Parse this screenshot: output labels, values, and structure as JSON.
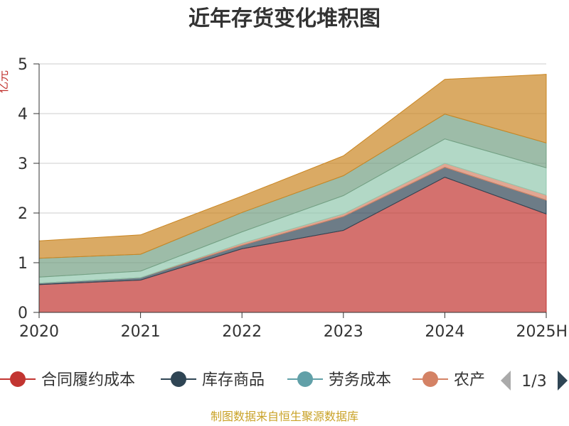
{
  "chart_data": {
    "type": "area",
    "stacked": true,
    "title": "近年存货变化堆积图",
    "ylabel": "亿元",
    "categories": [
      "2020",
      "2021",
      "2022",
      "2023",
      "2024",
      "2025H"
    ],
    "ylim": [
      0,
      5
    ],
    "yticks": [
      "0",
      "1",
      "2",
      "3",
      "4",
      "5"
    ],
    "grid": true,
    "series": [
      {
        "name": "合同履约成本",
        "color": "#c23531",
        "values": [
          0.56,
          0.65,
          1.28,
          1.65,
          2.72,
          1.98
        ]
      },
      {
        "name": "库存商品",
        "color": "#2f4554",
        "values": [
          0.03,
          0.05,
          0.07,
          0.28,
          0.2,
          0.28
        ]
      },
      {
        "name": "劳务成本",
        "color": "#61a0a8",
        "values": [
          0.0,
          0.0,
          0.0,
          0.0,
          0.0,
          0.0
        ]
      },
      {
        "name": "农产",
        "color": "#d48265",
        "values": [
          0.0,
          0.0,
          0.04,
          0.05,
          0.08,
          0.1
        ]
      },
      {
        "color": "#91c7ae",
        "values": [
          0.12,
          0.13,
          0.23,
          0.37,
          0.49,
          0.55
        ]
      },
      {
        "color": "#749f83",
        "values": [
          0.38,
          0.34,
          0.39,
          0.4,
          0.5,
          0.5
        ]
      },
      {
        "color": "#ca8622",
        "values": [
          0.35,
          0.39,
          0.33,
          0.4,
          0.7,
          1.38
        ]
      }
    ],
    "legend": {
      "position": "bottom",
      "page": "1/3"
    }
  },
  "source": "制图数据来自恒生聚源数据库"
}
